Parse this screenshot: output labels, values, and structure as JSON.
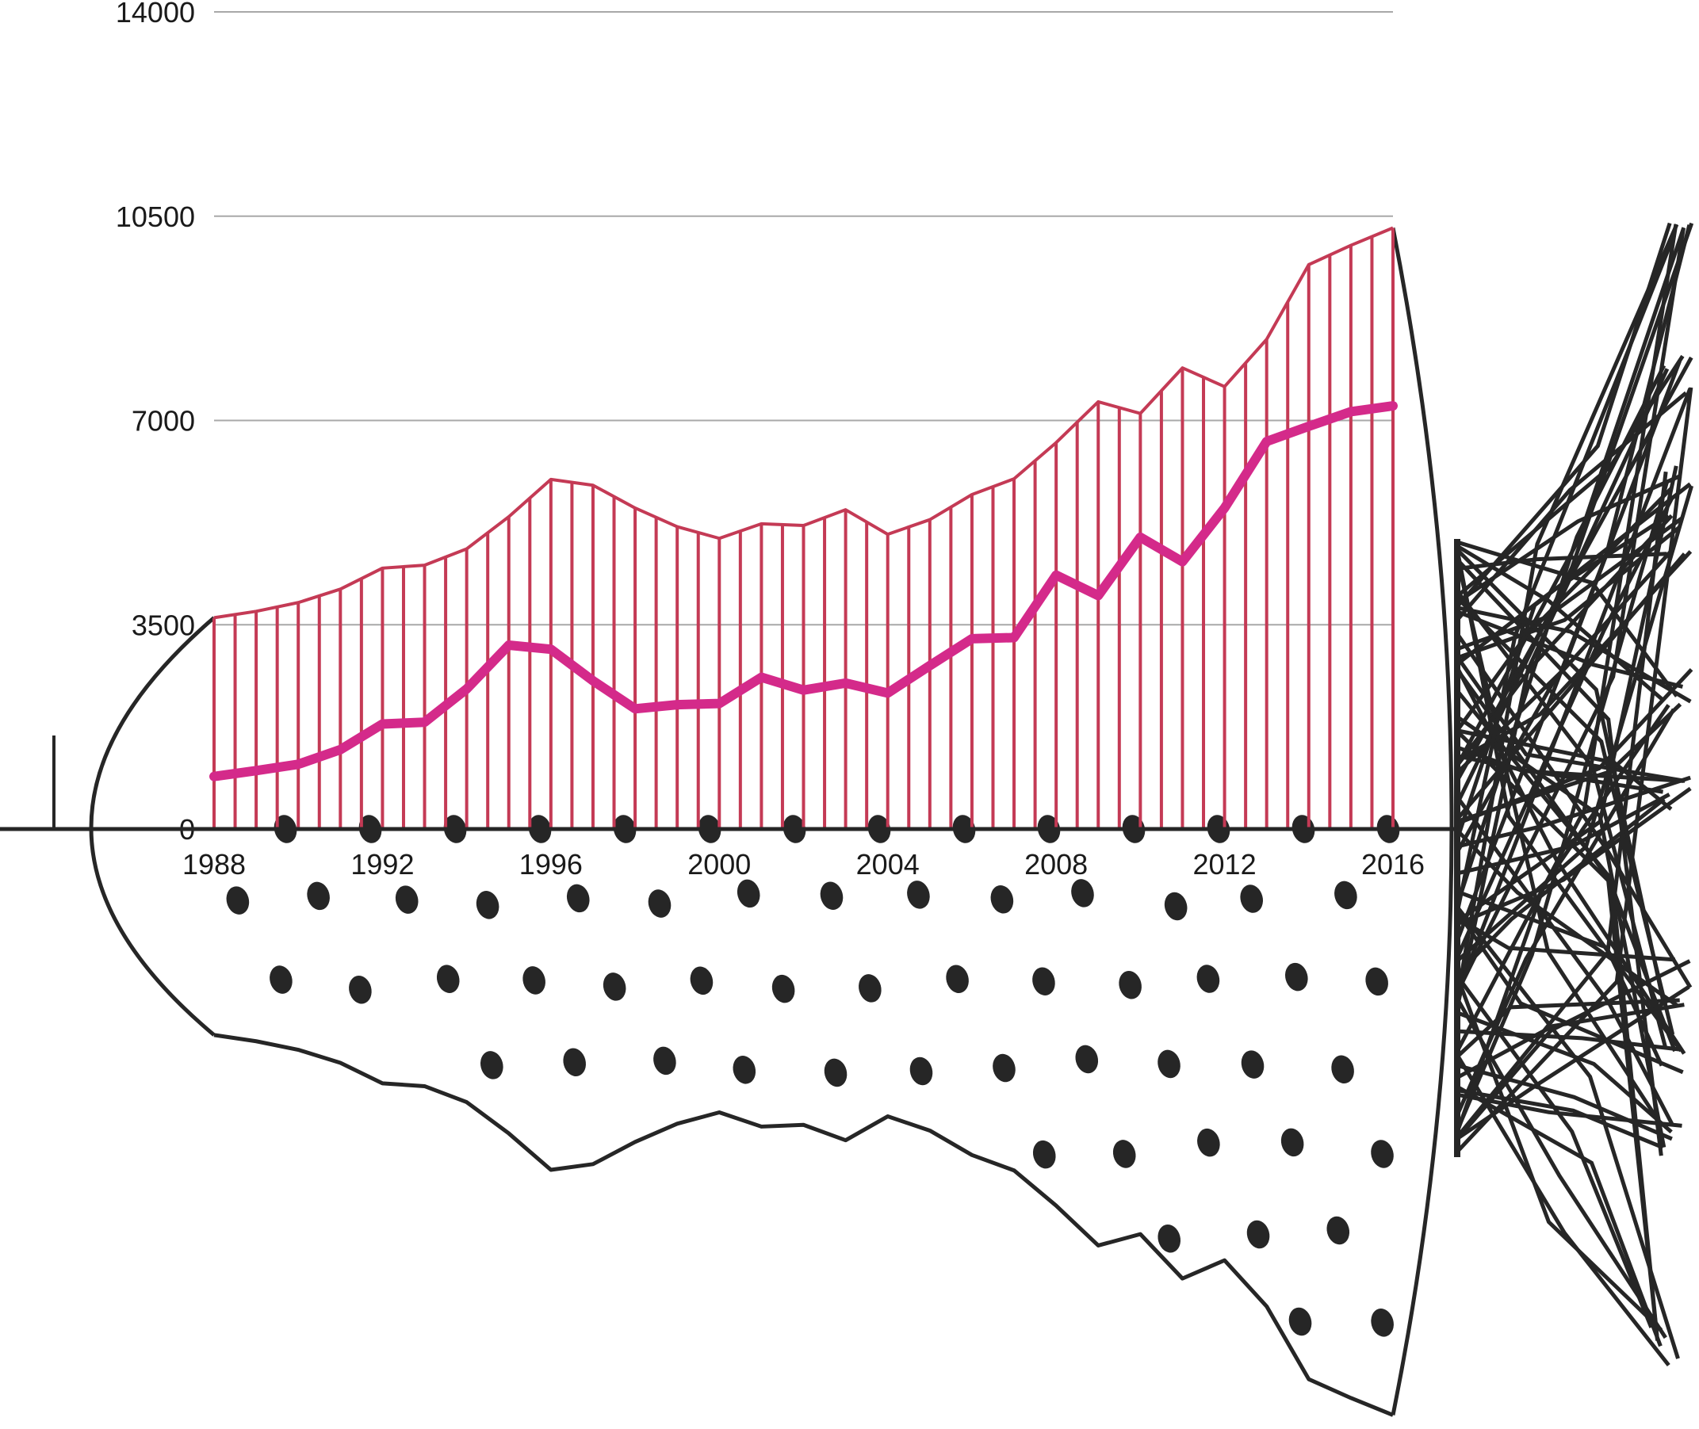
{
  "chart_data": {
    "type": "area",
    "title": "",
    "xlabel": "",
    "ylabel": "",
    "xlim": [
      1988,
      2016
    ],
    "ylim": [
      0,
      14000
    ],
    "y_ticks": [
      0,
      3500,
      7000,
      10500,
      14000
    ],
    "x_ticks": [
      1988,
      1992,
      1996,
      2000,
      2004,
      2008,
      2012,
      2016
    ],
    "grid": "horizontal",
    "legend": "none",
    "x": [
      1988,
      1989,
      1990,
      1991,
      1992,
      1993,
      1994,
      1995,
      1996,
      1997,
      1998,
      1999,
      2000,
      2001,
      2002,
      2003,
      2004,
      2005,
      2006,
      2007,
      2008,
      2009,
      2010,
      2011,
      2012,
      2013,
      2014,
      2015,
      2016
    ],
    "series": [
      {
        "values": [
          3620,
          3730,
          3880,
          4110,
          4470,
          4520,
          4800,
          5350,
          5990,
          5890,
          5500,
          5180,
          4980,
          5230,
          5200,
          5470,
          5050,
          5300,
          5730,
          6000,
          6620,
          7320,
          7120,
          7900,
          7580,
          8390,
          9670,
          10000,
          10300
        ],
        "color": "#c43a55",
        "style": "hatched-area"
      },
      {
        "values": [
          900,
          1000,
          1110,
          1360,
          1800,
          1830,
          2400,
          3150,
          3080,
          2540,
          2060,
          2130,
          2150,
          2600,
          2380,
          2500,
          2330,
          2800,
          3260,
          3280,
          4350,
          4000,
          5000,
          4580,
          5500,
          6640,
          6900,
          7150,
          7250
        ],
        "color": "#d42a8a",
        "style": "line"
      }
    ]
  },
  "colors": {
    "upper_area": "#c43a55",
    "trend_line": "#d42a8a",
    "ink": "#262626",
    "gridline": "#a8a8a8"
  }
}
